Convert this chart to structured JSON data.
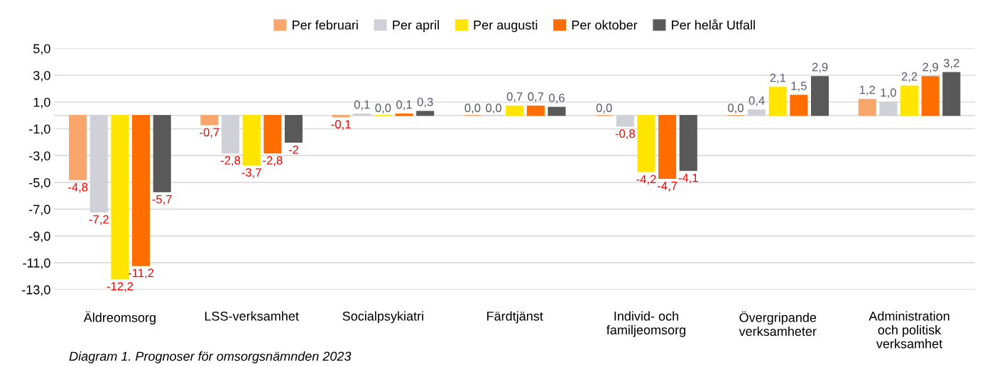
{
  "chart_data": {
    "type": "bar",
    "categories": [
      "Äldreomsorg",
      "LSS-verksamhet",
      "Socialpsykiatri",
      "Färdtjänst",
      "Individ- och\nfamiljeomsorg",
      "Övergripande\nverksamheter",
      "Administration\noch politisk\nverksamhet"
    ],
    "series": [
      {
        "name": "Per februari",
        "color": "#f9a66c",
        "values": [
          -4.8,
          -0.7,
          -0.1,
          0.0,
          0.0,
          0.0,
          1.2
        ],
        "value_labels": [
          "-4,8",
          "-0,7",
          "-0,1",
          "0,0",
          "0,0",
          "0,0",
          "1,2"
        ]
      },
      {
        "name": "Per april",
        "color": "#d0d0d8",
        "values": [
          -7.2,
          -2.8,
          0.1,
          0.0,
          -0.8,
          0.4,
          1.0
        ],
        "value_labels": [
          "-7,2",
          "-2,8",
          "0,1",
          "0,0",
          "-0,8",
          "0,4",
          "1,0"
        ]
      },
      {
        "name": "Per augusti",
        "color": "#ffe500",
        "values": [
          -12.2,
          -3.7,
          0.0,
          0.7,
          -4.2,
          2.1,
          2.2
        ],
        "value_labels": [
          "-12,2",
          "-3,7",
          "0,0",
          "0,7",
          "-4,2",
          "2,1",
          "2,2"
        ]
      },
      {
        "name": "Per oktober",
        "color": "#ff6d00",
        "values": [
          -11.2,
          -2.8,
          0.1,
          0.7,
          -4.7,
          1.5,
          2.9
        ],
        "value_labels": [
          "-11,2",
          "-2,8",
          "0,1",
          "0,7",
          "-4,7",
          "1,5",
          "2,9"
        ]
      },
      {
        "name": "Per helår Utfall",
        "color": "#595959",
        "values": [
          -5.7,
          -2,
          0.3,
          0.6,
          -4.1,
          2.9,
          3.2
        ],
        "value_labels": [
          "-5,7",
          "-2",
          "0,3",
          "0,6",
          "-4,1",
          "2,9",
          "3,2"
        ]
      }
    ],
    "ylim": [
      -13,
      5
    ],
    "yticks": [
      {
        "value": -13,
        "label": "-13,0"
      },
      {
        "value": -11,
        "label": "-11,0"
      },
      {
        "value": -9,
        "label": "-9,0"
      },
      {
        "value": -7,
        "label": "-7,0"
      },
      {
        "value": -5,
        "label": "-5,0"
      },
      {
        "value": -3,
        "label": "-3,0"
      },
      {
        "value": -1,
        "label": "-1,0"
      },
      {
        "value": 1,
        "label": "1,0"
      },
      {
        "value": 3,
        "label": "3,0"
      },
      {
        "value": 5,
        "label": "5,0"
      }
    ],
    "grid": "y",
    "legend": "top",
    "annotations": [
      "Diagram 1. Prognoser för omsorgsnämnden 2023"
    ]
  }
}
